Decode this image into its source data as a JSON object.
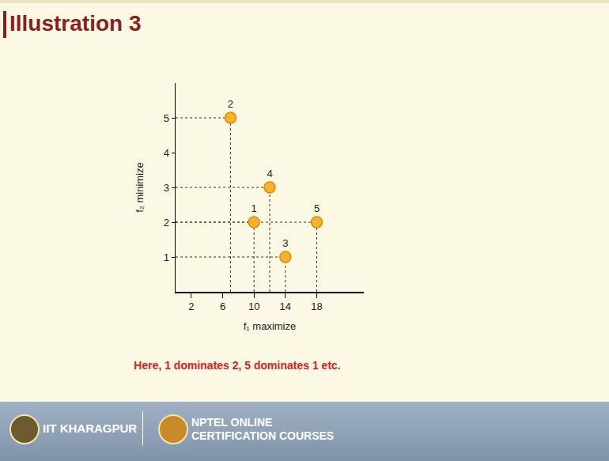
{
  "title": "Illustration 3",
  "caption": "Here, 1 dominates 2, 5 dominates 1 etc.",
  "footer": {
    "left": "IIT KHARAGPUR",
    "right": "NPTEL ONLINE CERTIFICATION COURSES"
  },
  "chart_data": {
    "type": "scatter",
    "x_label": "f₁ maximize",
    "y_label": "f₂ minimize",
    "x": [
      10,
      7,
      14,
      12,
      18
    ],
    "values": [
      2,
      5,
      1,
      3,
      2
    ],
    "point_labels": [
      "1",
      "2",
      "3",
      "4",
      "5"
    ],
    "color": "#f7b32b",
    "marker": "circle",
    "xlim": [
      0,
      24
    ],
    "ylim": [
      0,
      6
    ],
    "xticks": [
      2,
      6,
      10,
      14,
      18
    ],
    "yticks": [
      1,
      2,
      3,
      4,
      5
    ],
    "grid": false
  }
}
